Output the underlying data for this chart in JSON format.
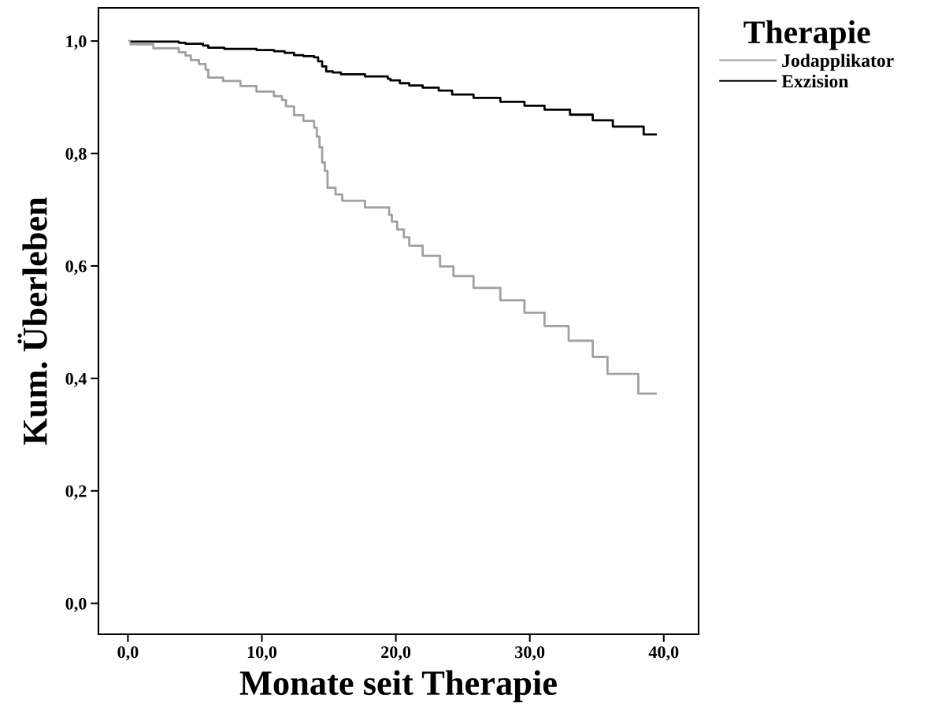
{
  "chart_data": {
    "type": "step",
    "xlabel": "Monate seit Therapie",
    "ylabel": "Kum. Überleben",
    "legend_title": "Therapie",
    "legend": "top right",
    "grid": false,
    "marker": "none",
    "line_style": "solid",
    "xlim": [
      -2.2,
      42.6
    ],
    "ylim": [
      -0.055,
      1.059
    ],
    "xticks": [
      {
        "value": 0,
        "label": "0,0"
      },
      {
        "value": 10,
        "label": "10,0"
      },
      {
        "value": 20,
        "label": "20,0"
      },
      {
        "value": 30,
        "label": "30,0"
      },
      {
        "value": 40,
        "label": "40,0"
      }
    ],
    "yticks": [
      {
        "value": 0,
        "label": "0,0"
      },
      {
        "value": 0.2,
        "label": "0,2"
      },
      {
        "value": 0.4,
        "label": "0,4"
      },
      {
        "value": 0.6,
        "label": "0,6"
      },
      {
        "value": 0.8,
        "label": "0,8"
      },
      {
        "value": 1.0,
        "label": "1,0"
      }
    ],
    "series": [
      {
        "name": "Jodapplikator",
        "color": "#a0a0a0",
        "x": [
          0.1,
          0.2,
          1.9,
          3.8,
          4.3,
          4.7,
          5.3,
          5.8,
          6.0,
          7.1,
          8.4,
          9.6,
          10.9,
          11.5,
          11.8,
          12.4,
          13.1,
          13.9,
          14.1,
          14.3,
          14.5,
          14.7,
          14.9,
          15.5,
          16.0,
          17.7,
          19.5,
          19.7,
          20.1,
          20.6,
          21.0,
          22.0,
          23.3,
          24.3,
          25.8,
          27.8,
          29.6,
          31.1,
          32.9,
          34.7,
          35.8,
          38.1,
          39.4
        ],
        "values": [
          1.0,
          0.994,
          0.987,
          0.98,
          0.974,
          0.966,
          0.959,
          0.949,
          0.935,
          0.929,
          0.92,
          0.91,
          0.902,
          0.895,
          0.884,
          0.868,
          0.858,
          0.846,
          0.83,
          0.811,
          0.784,
          0.769,
          0.739,
          0.727,
          0.716,
          0.704,
          0.691,
          0.679,
          0.665,
          0.651,
          0.636,
          0.618,
          0.599,
          0.582,
          0.561,
          0.539,
          0.517,
          0.493,
          0.467,
          0.438,
          0.408,
          0.373,
          0.373
        ]
      },
      {
        "name": "Exzision",
        "color": "#000000",
        "x": [
          0.3,
          3.8,
          4.3,
          5.6,
          6.0,
          7.2,
          9.6,
          10.9,
          11.7,
          12.4,
          13.1,
          13.9,
          14.2,
          14.5,
          14.8,
          15.3,
          15.9,
          17.7,
          19.4,
          19.6,
          20.3,
          21.0,
          22.0,
          23.2,
          24.2,
          25.8,
          27.8,
          29.6,
          31.1,
          33.0,
          34.7,
          36.2,
          38.5,
          39.4
        ],
        "values": [
          0.999,
          0.997,
          0.995,
          0.992,
          0.988,
          0.986,
          0.984,
          0.982,
          0.979,
          0.975,
          0.973,
          0.971,
          0.964,
          0.955,
          0.946,
          0.944,
          0.941,
          0.937,
          0.933,
          0.93,
          0.925,
          0.921,
          0.917,
          0.912,
          0.905,
          0.899,
          0.892,
          0.885,
          0.878,
          0.869,
          0.859,
          0.848,
          0.834,
          0.834
        ]
      }
    ]
  }
}
